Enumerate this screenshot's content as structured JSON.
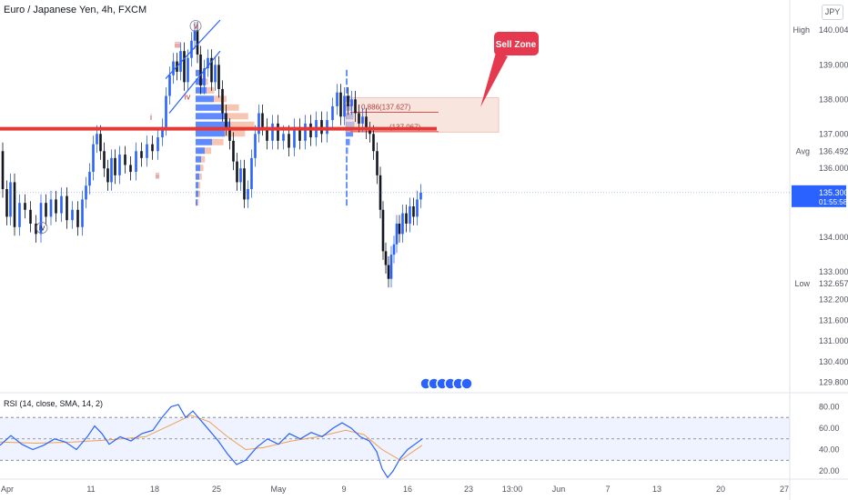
{
  "chart_data": [
    {
      "type": "candlestick",
      "title": "Euro / Japanese Yen, 4h, FXCM",
      "currency": "JPY",
      "ylim": [
        129.5,
        140.3
      ],
      "x_ticks": [
        "Apr",
        "11",
        "18",
        "25",
        "May",
        "9",
        "16",
        "23",
        "13:00",
        "Jun",
        "7",
        "13",
        "20",
        "27"
      ],
      "y_ticks": [
        "140.004",
        "139.000",
        "138.000",
        "137.000",
        "136.000",
        "135.300",
        "134.000",
        "133.000",
        "132.200",
        "131.600",
        "131.000",
        "130.400",
        "129.800"
      ],
      "price_labels": {
        "high_label": "High",
        "high": "140.004",
        "avg_label": "Avg",
        "avg": "136.492",
        "low_label": "Low",
        "low": "132.657",
        "current": "135.300",
        "countdown": "01:55:58"
      },
      "key_level": 137.15,
      "sell_zone": {
        "label": "Sell Zone",
        "top": 138.05,
        "bottom": 137.05,
        "fib_upper": "0.886(137.627)",
        "fib_lower": "(137.067)"
      },
      "wave_labels": [
        "v",
        "iii",
        "iv",
        "i",
        "ii",
        "iv"
      ],
      "price_path": [
        [
          0,
          136.5
        ],
        [
          5,
          135.4
        ],
        [
          9,
          134.6
        ],
        [
          13,
          135.6
        ],
        [
          18,
          134.3
        ],
        [
          24,
          135.0
        ],
        [
          30,
          134.8
        ],
        [
          36,
          134.4
        ],
        [
          42,
          134.1
        ],
        [
          47,
          135.0
        ],
        [
          53,
          134.6
        ],
        [
          58,
          135.1
        ],
        [
          64,
          134.7
        ],
        [
          70,
          135.2
        ],
        [
          76,
          134.5
        ],
        [
          82,
          134.8
        ],
        [
          88,
          134.3
        ],
        [
          92,
          135.1
        ],
        [
          96,
          135.5
        ],
        [
          100,
          135.9
        ],
        [
          104,
          136.7
        ],
        [
          108,
          137.0
        ],
        [
          112,
          136.5
        ],
        [
          116,
          136.0
        ],
        [
          120,
          135.6
        ],
        [
          124,
          136.3
        ],
        [
          128,
          135.8
        ],
        [
          134,
          136.4
        ],
        [
          140,
          136.1
        ],
        [
          146,
          135.9
        ],
        [
          152,
          136.5
        ],
        [
          158,
          136.3
        ],
        [
          164,
          136.7
        ],
        [
          170,
          136.5
        ],
        [
          176,
          136.9
        ],
        [
          180,
          137.2
        ],
        [
          184,
          138.1
        ],
        [
          188,
          138.7
        ],
        [
          192,
          139.1
        ],
        [
          196,
          138.8
        ],
        [
          200,
          139.4
        ],
        [
          204,
          138.5
        ],
        [
          208,
          139.2
        ],
        [
          212,
          139.7
        ],
        [
          215,
          140.0
        ],
        [
          218,
          139.3
        ],
        [
          222,
          138.4
        ],
        [
          226,
          138.9
        ],
        [
          230,
          139.2
        ],
        [
          234,
          138.5
        ],
        [
          238,
          139.0
        ],
        [
          242,
          138.3
        ],
        [
          246,
          137.6
        ],
        [
          250,
          137.2
        ],
        [
          254,
          136.8
        ],
        [
          258,
          136.2
        ],
        [
          262,
          135.6
        ],
        [
          266,
          136.0
        ],
        [
          270,
          135.1
        ],
        [
          274,
          135.4
        ],
        [
          278,
          136.3
        ],
        [
          282,
          137.0
        ],
        [
          286,
          137.6
        ],
        [
          290,
          137.2
        ],
        [
          296,
          136.8
        ],
        [
          302,
          137.3
        ],
        [
          308,
          136.8
        ],
        [
          314,
          137.0
        ],
        [
          320,
          136.6
        ],
        [
          326,
          137.2
        ],
        [
          332,
          136.8
        ],
        [
          338,
          137.3
        ],
        [
          344,
          136.9
        ],
        [
          350,
          137.4
        ],
        [
          356,
          137.0
        ],
        [
          362,
          137.4
        ],
        [
          368,
          137.8
        ],
        [
          372,
          138.2
        ],
        [
          376,
          137.5
        ],
        [
          380,
          138.1
        ],
        [
          384,
          137.8
        ],
        [
          388,
          138.0
        ],
        [
          392,
          137.6
        ],
        [
          396,
          137.3
        ],
        [
          400,
          137.5
        ],
        [
          404,
          137.1
        ],
        [
          408,
          137.0
        ],
        [
          412,
          136.5
        ],
        [
          416,
          135.8
        ],
        [
          419,
          134.8
        ],
        [
          422,
          133.6
        ],
        [
          425,
          133.2
        ],
        [
          428,
          132.8
        ],
        [
          431,
          133.5
        ],
        [
          434,
          133.8
        ],
        [
          437,
          134.4
        ],
        [
          440,
          134.1
        ],
        [
          444,
          134.7
        ],
        [
          448,
          134.4
        ],
        [
          452,
          134.9
        ],
        [
          456,
          134.6
        ],
        [
          460,
          135.1
        ],
        [
          464,
          135.3
        ]
      ],
      "volume_profile": [
        [
          138.75,
          4
        ],
        [
          138.5,
          8
        ],
        [
          138.25,
          12
        ],
        [
          138.0,
          20
        ],
        [
          137.75,
          28
        ],
        [
          137.5,
          34
        ],
        [
          137.25,
          38
        ],
        [
          137.0,
          32
        ],
        [
          136.75,
          18
        ],
        [
          136.5,
          10
        ],
        [
          136.25,
          6
        ],
        [
          136.0,
          5
        ],
        [
          135.75,
          4
        ],
        [
          135.5,
          3
        ],
        [
          135.25,
          3
        ],
        [
          135.0,
          2
        ]
      ]
    },
    {
      "type": "line",
      "title": "RSI (14, close, SMA, 14, 2)",
      "ylim": [
        15,
        88
      ],
      "y_ticks": [
        "80.00",
        "60.00",
        "40.00",
        "20.00"
      ],
      "bands": [
        70,
        50,
        30
      ],
      "rsi": [
        [
          0,
          44
        ],
        [
          12,
          53
        ],
        [
          24,
          45
        ],
        [
          36,
          40
        ],
        [
          48,
          44
        ],
        [
          60,
          50
        ],
        [
          72,
          47
        ],
        [
          84,
          40
        ],
        [
          96,
          52
        ],
        [
          104,
          62
        ],
        [
          112,
          55
        ],
        [
          120,
          45
        ],
        [
          132,
          52
        ],
        [
          144,
          48
        ],
        [
          156,
          55
        ],
        [
          168,
          58
        ],
        [
          178,
          70
        ],
        [
          188,
          80
        ],
        [
          196,
          82
        ],
        [
          204,
          70
        ],
        [
          212,
          76
        ],
        [
          220,
          68
        ],
        [
          230,
          58
        ],
        [
          240,
          48
        ],
        [
          250,
          36
        ],
        [
          260,
          26
        ],
        [
          270,
          30
        ],
        [
          282,
          42
        ],
        [
          294,
          50
        ],
        [
          306,
          45
        ],
        [
          318,
          55
        ],
        [
          330,
          50
        ],
        [
          342,
          56
        ],
        [
          354,
          52
        ],
        [
          366,
          60
        ],
        [
          376,
          65
        ],
        [
          386,
          60
        ],
        [
          396,
          52
        ],
        [
          406,
          48
        ],
        [
          414,
          38
        ],
        [
          420,
          22
        ],
        [
          426,
          14
        ],
        [
          432,
          20
        ],
        [
          440,
          32
        ],
        [
          448,
          40
        ],
        [
          456,
          45
        ],
        [
          464,
          50
        ]
      ],
      "rsi_ma": [
        [
          0,
          47
        ],
        [
          40,
          46
        ],
        [
          80,
          47
        ],
        [
          120,
          49
        ],
        [
          160,
          52
        ],
        [
          190,
          64
        ],
        [
          210,
          72
        ],
        [
          230,
          66
        ],
        [
          250,
          52
        ],
        [
          270,
          40
        ],
        [
          290,
          42
        ],
        [
          320,
          48
        ],
        [
          350,
          52
        ],
        [
          380,
          58
        ],
        [
          400,
          54
        ],
        [
          420,
          40
        ],
        [
          440,
          30
        ],
        [
          464,
          44
        ]
      ]
    }
  ]
}
